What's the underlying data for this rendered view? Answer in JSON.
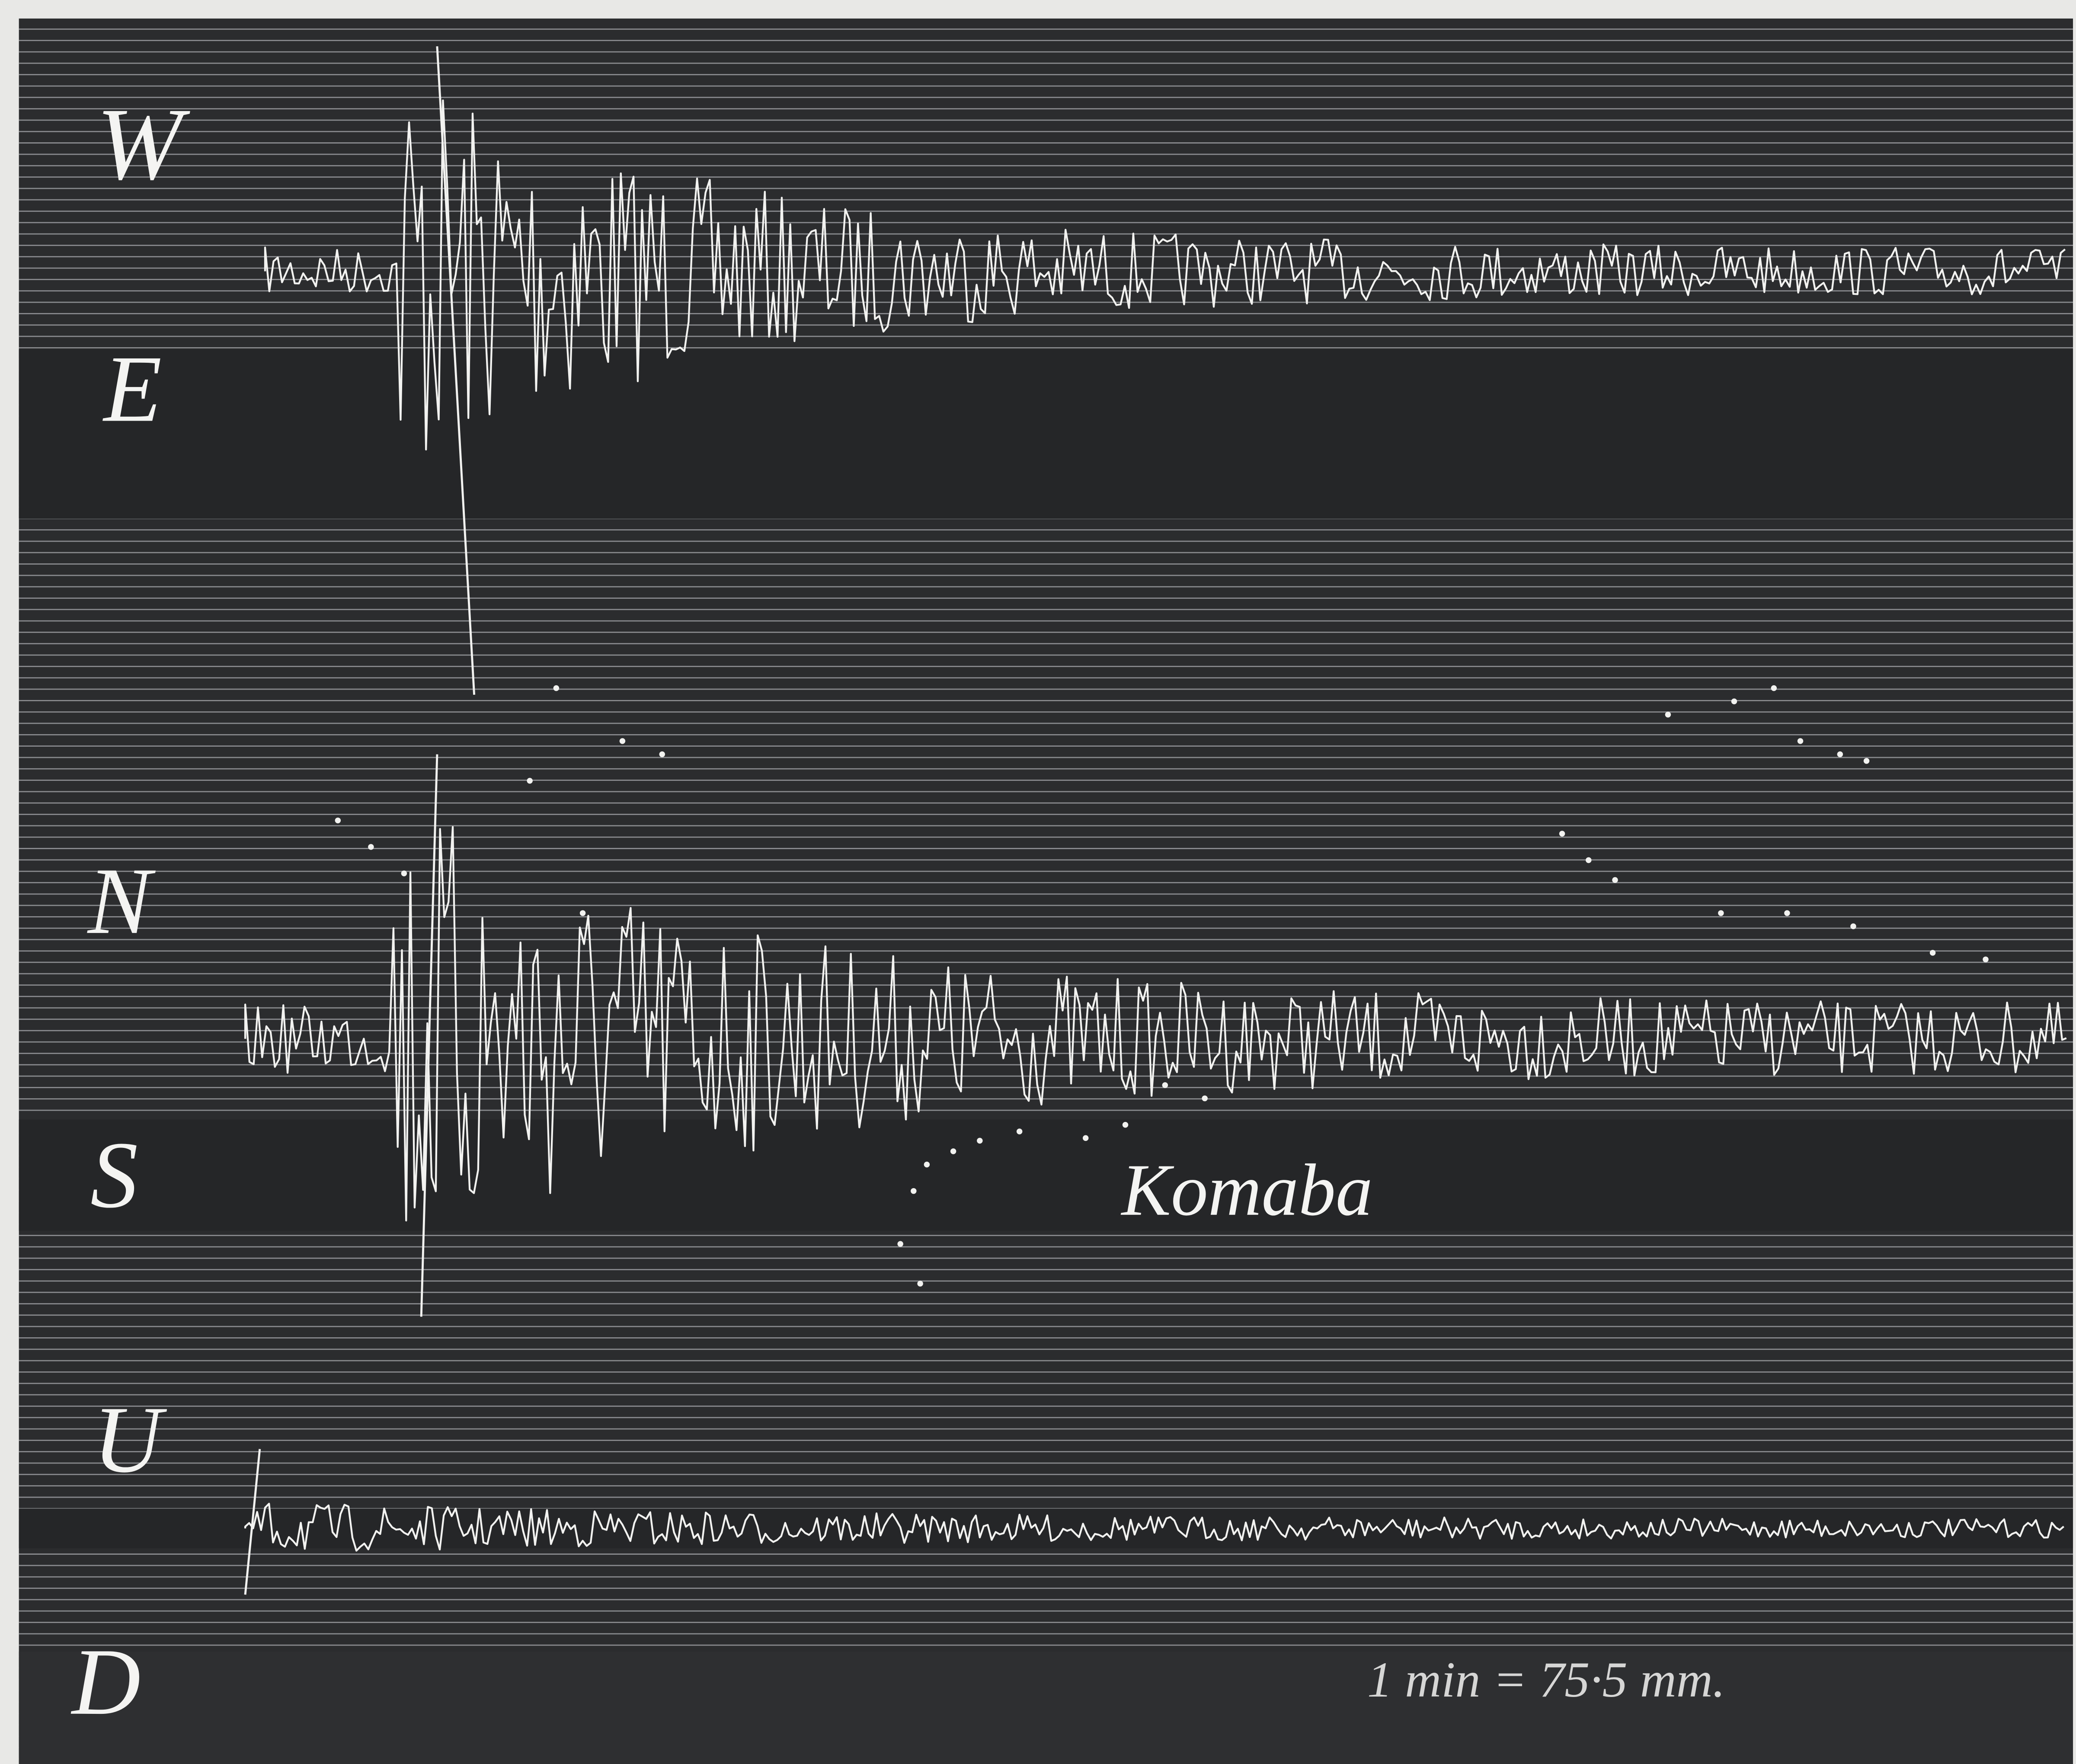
{
  "components": [
    "W",
    "E",
    "N",
    "S",
    "U",
    "D"
  ],
  "station": "Komaba",
  "scale": "1 min = 75·5 mm."
}
